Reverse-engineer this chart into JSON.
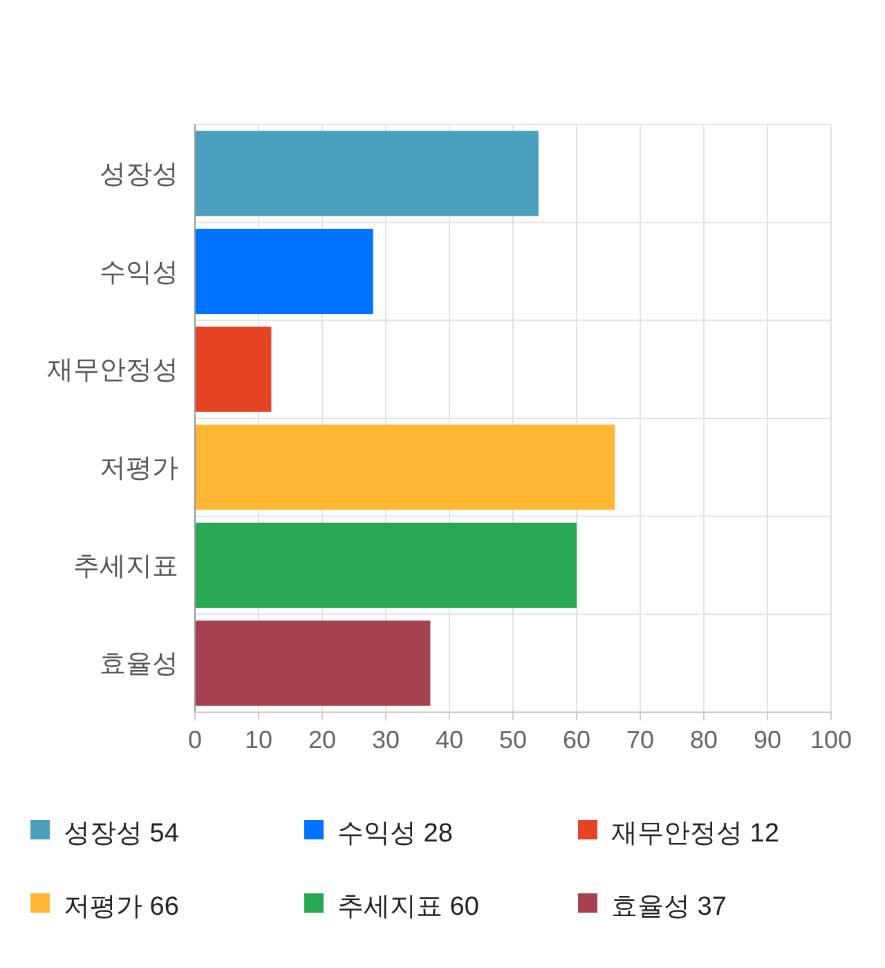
{
  "chart_data": {
    "type": "bar",
    "orientation": "horizontal",
    "stacked": true,
    "categories": [
      "성장성",
      "수익성",
      "재무안정성",
      "저평가",
      "추세지표",
      "효율성"
    ],
    "series": [
      {
        "name": "성장성 54",
        "color": "#4aa0bc",
        "values": [
          54,
          null,
          null,
          null,
          null,
          null
        ]
      },
      {
        "name": "수익성 28",
        "color": "#0073ff",
        "values": [
          null,
          28,
          null,
          null,
          null,
          null
        ]
      },
      {
        "name": "재무안정성 12",
        "color": "#e44324",
        "values": [
          null,
          null,
          12,
          null,
          null,
          null
        ]
      },
      {
        "name": "저평가 66",
        "color": "#ffb733",
        "values": [
          null,
          null,
          null,
          66,
          null,
          null
        ]
      },
      {
        "name": "추세지표 60",
        "color": "#29a854",
        "values": [
          null,
          null,
          null,
          null,
          60,
          null
        ]
      },
      {
        "name": "효율성 37",
        "color": "#a6414f",
        "values": [
          null,
          null,
          null,
          null,
          null,
          37
        ]
      }
    ],
    "xlim": [
      0,
      100
    ],
    "xticks": [
      0,
      10,
      20,
      30,
      40,
      50,
      60,
      70,
      80,
      90,
      100
    ],
    "grid": true,
    "legend": "bottom"
  }
}
